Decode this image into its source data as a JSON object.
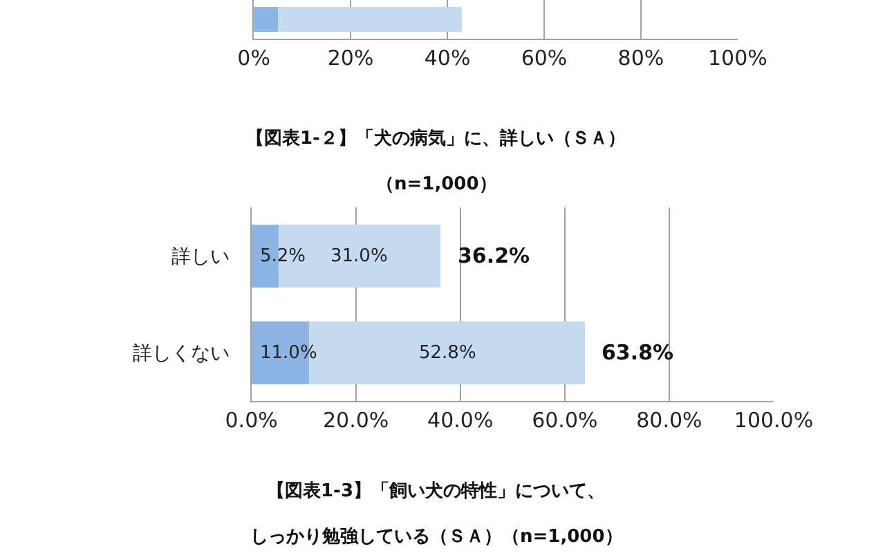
{
  "chart_data": [
    {
      "type": "bar",
      "orientation": "horizontal",
      "stacked": true,
      "categories": [
        null
      ],
      "series": [
        {
          "color": "#8db4e2",
          "values": [
            5
          ]
        },
        {
          "color": "#c5d9f1",
          "values": [
            38
          ]
        }
      ],
      "xlim": [
        0,
        100
      ],
      "xticks": [
        {
          "value": 0,
          "label": "0%"
        },
        {
          "value": 20,
          "label": "20%"
        },
        {
          "value": 40,
          "label": "40%"
        },
        {
          "value": 60,
          "label": "60%"
        },
        {
          "value": 80,
          "label": "80%"
        },
        {
          "value": 100,
          "label": "100%"
        }
      ],
      "grid": "x"
    },
    {
      "type": "bar",
      "orientation": "horizontal",
      "stacked": true,
      "title": "【図表1-２】「犬の病気」に、詳しい（ＳＡ）",
      "subtitle": "（n=1,000）",
      "categories": [
        "詳しい",
        "詳しくない"
      ],
      "series": [
        {
          "color": "#8db4e2",
          "values": [
            5.2,
            11.0
          ],
          "value_labels": [
            "5.2%",
            "11.0%"
          ]
        },
        {
          "color": "#c5d9f1",
          "values": [
            31.0,
            52.8
          ],
          "value_labels": [
            "31.0%",
            "52.8%"
          ]
        }
      ],
      "totals": [
        "36.2%",
        "63.8%"
      ],
      "xlim": [
        0,
        100
      ],
      "xticks": [
        {
          "value": 0,
          "label": "0.0%"
        },
        {
          "value": 20,
          "label": "20.0%"
        },
        {
          "value": 40,
          "label": "40.0%"
        },
        {
          "value": 60,
          "label": "60.0%"
        },
        {
          "value": 80,
          "label": "80.0%"
        },
        {
          "value": 100,
          "label": "100.0%"
        }
      ],
      "grid": "x"
    },
    {
      "type": "other",
      "title": "【図表1-3】「飼い犬の特性」について、",
      "subtitle": "しっかり勉強している（ＳＡ）（n=1,000）"
    }
  ]
}
